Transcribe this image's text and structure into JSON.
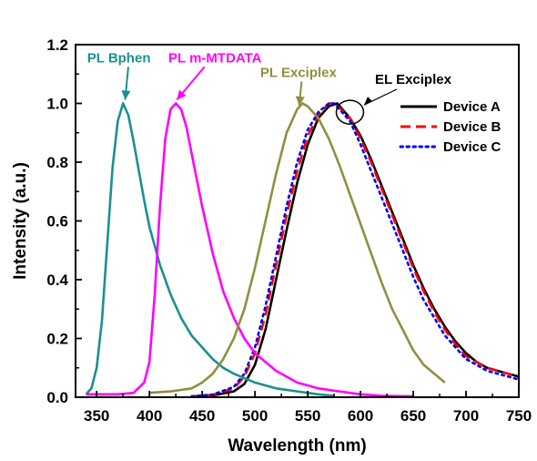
{
  "chart_data": {
    "type": "line",
    "title": "",
    "xlabel": "Wavelength (nm)",
    "ylabel": "Intensity (a.u.)",
    "xlim": [
      330,
      750
    ],
    "ylim": [
      0,
      1.2
    ],
    "xticks": [
      350,
      400,
      450,
      500,
      550,
      600,
      650,
      700,
      750
    ],
    "yticks": [
      0.0,
      0.2,
      0.4,
      0.6,
      0.8,
      1.0,
      1.2
    ],
    "xtick_labels": [
      "350",
      "400",
      "450",
      "500",
      "550",
      "600",
      "650",
      "700",
      "750"
    ],
    "ytick_labels": [
      "0.0",
      "0.2",
      "0.4",
      "0.6",
      "0.8",
      "1.0",
      "1.2"
    ],
    "grid": false,
    "legend_position": "top-right",
    "legend_title": "EL Exciplex",
    "series": [
      {
        "name": "Device A",
        "color": "#000000",
        "style": "solid",
        "in_legend": true,
        "x": [
          440,
          460,
          480,
          490,
          500,
          510,
          520,
          530,
          540,
          550,
          560,
          570,
          578,
          590,
          600,
          610,
          620,
          630,
          640,
          650,
          660,
          670,
          680,
          690,
          700,
          710,
          720,
          730,
          740,
          750
        ],
        "y": [
          0.003,
          0.006,
          0.02,
          0.045,
          0.11,
          0.23,
          0.4,
          0.57,
          0.73,
          0.86,
          0.95,
          0.99,
          1.0,
          0.95,
          0.89,
          0.81,
          0.72,
          0.63,
          0.54,
          0.45,
          0.37,
          0.3,
          0.24,
          0.19,
          0.15,
          0.12,
          0.1,
          0.09,
          0.08,
          0.07
        ]
      },
      {
        "name": "Device B",
        "color": "#ff0000",
        "style": "dashed",
        "in_legend": true,
        "x": [
          440,
          460,
          480,
          490,
          500,
          510,
          520,
          530,
          540,
          550,
          560,
          570,
          576,
          590,
          600,
          610,
          620,
          630,
          640,
          650,
          660,
          670,
          680,
          690,
          700,
          710,
          720,
          730,
          740,
          750
        ],
        "y": [
          0.003,
          0.008,
          0.03,
          0.07,
          0.15,
          0.28,
          0.45,
          0.62,
          0.77,
          0.89,
          0.96,
          1.0,
          1.0,
          0.95,
          0.88,
          0.8,
          0.71,
          0.62,
          0.53,
          0.44,
          0.36,
          0.29,
          0.23,
          0.18,
          0.14,
          0.12,
          0.1,
          0.09,
          0.08,
          0.065
        ]
      },
      {
        "name": "Device C",
        "color": "#0000ff",
        "style": "dotted",
        "in_legend": true,
        "x": [
          440,
          460,
          480,
          490,
          500,
          510,
          520,
          530,
          540,
          550,
          560,
          570,
          575,
          590,
          600,
          610,
          620,
          630,
          640,
          650,
          660,
          670,
          680,
          690,
          700,
          710,
          720,
          730,
          740,
          750
        ],
        "y": [
          0.003,
          0.009,
          0.035,
          0.08,
          0.17,
          0.31,
          0.48,
          0.65,
          0.8,
          0.91,
          0.97,
          1.0,
          1.0,
          0.94,
          0.86,
          0.77,
          0.68,
          0.59,
          0.5,
          0.41,
          0.33,
          0.27,
          0.21,
          0.17,
          0.13,
          0.11,
          0.09,
          0.08,
          0.07,
          0.06
        ]
      },
      {
        "name": "PL Bphen",
        "color": "#1a9090",
        "style": "solid",
        "in_legend": false,
        "x": [
          340,
          345,
          350,
          355,
          360,
          365,
          370,
          375,
          380,
          385,
          390,
          395,
          400,
          410,
          420,
          430,
          440,
          450,
          460,
          470,
          480,
          500,
          520,
          540,
          560,
          575
        ],
        "y": [
          0.01,
          0.03,
          0.1,
          0.26,
          0.52,
          0.78,
          0.94,
          1.0,
          0.96,
          0.87,
          0.77,
          0.67,
          0.58,
          0.45,
          0.35,
          0.27,
          0.21,
          0.17,
          0.13,
          0.1,
          0.08,
          0.05,
          0.03,
          0.02,
          0.01,
          0.005
        ]
      },
      {
        "name": "PL m-MTDATA",
        "color": "#ff00ff",
        "style": "solid",
        "in_legend": false,
        "x": [
          340,
          370,
          385,
          395,
          400,
          405,
          410,
          415,
          420,
          425,
          430,
          435,
          440,
          445,
          450,
          460,
          470,
          480,
          490,
          500,
          520,
          540,
          560,
          580,
          600,
          620,
          650
        ],
        "y": [
          0.01,
          0.01,
          0.015,
          0.05,
          0.12,
          0.35,
          0.65,
          0.88,
          0.98,
          1.0,
          0.98,
          0.92,
          0.83,
          0.74,
          0.65,
          0.49,
          0.36,
          0.27,
          0.2,
          0.15,
          0.09,
          0.05,
          0.03,
          0.02,
          0.01,
          0.005,
          0.003
        ]
      },
      {
        "name": "PL Exciplex",
        "color": "#8f8f3f",
        "style": "solid",
        "in_legend": false,
        "x": [
          400,
          420,
          440,
          450,
          460,
          470,
          480,
          490,
          500,
          510,
          520,
          530,
          540,
          545,
          550,
          560,
          570,
          580,
          590,
          600,
          610,
          620,
          630,
          640,
          650,
          660,
          670,
          680
        ],
        "y": [
          0.015,
          0.02,
          0.03,
          0.05,
          0.08,
          0.13,
          0.2,
          0.3,
          0.44,
          0.6,
          0.76,
          0.9,
          0.98,
          1.0,
          0.99,
          0.95,
          0.88,
          0.79,
          0.69,
          0.59,
          0.49,
          0.39,
          0.3,
          0.23,
          0.16,
          0.11,
          0.08,
          0.05
        ]
      }
    ],
    "annotations": [
      {
        "text": "PL Bphen",
        "color": "#1a9090",
        "target_x": 377,
        "target_y": 1.0,
        "label_x": 341,
        "label_y": 1.14
      },
      {
        "text": "PL m-MTDATA",
        "color": "#ff00ff",
        "target_x": 426,
        "target_y": 1.0,
        "label_x": 418,
        "label_y": 1.14
      },
      {
        "text": "PL Exciplex",
        "color": "#8f8f3f",
        "target_x": 542,
        "target_y": 0.98,
        "label_x": 505,
        "label_y": 1.09
      }
    ],
    "callout": {
      "center_x": 590,
      "center_y": 0.97,
      "arrow_label_x": 610
    }
  }
}
